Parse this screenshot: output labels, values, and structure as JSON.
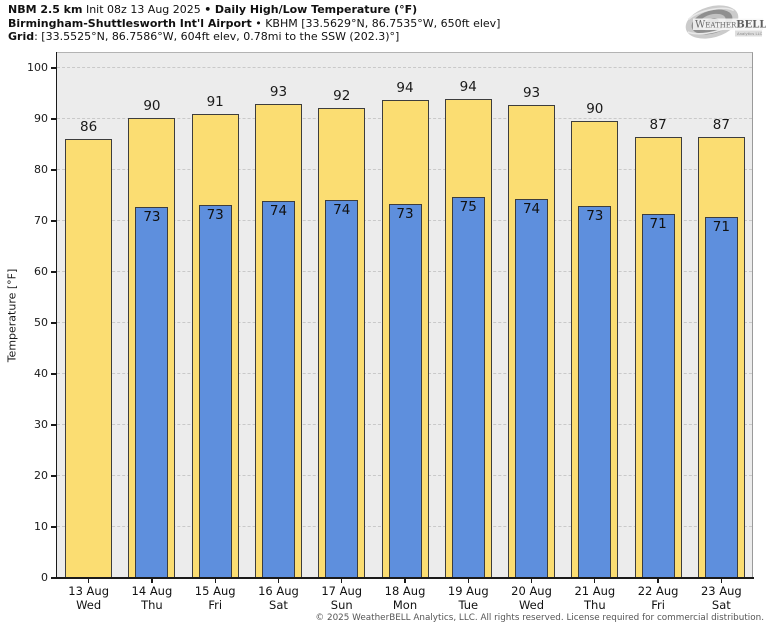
{
  "header": {
    "line1": {
      "model": "NBM 2.5 km",
      "init": "Init 08z 13 Aug 2025",
      "bullet": "•",
      "product": "Daily High/Low Temperature (°F)"
    },
    "line2": {
      "station": "Birmingham-Shuttlesworth Int'l Airport",
      "bullet": "•",
      "meta": "KBHM [33.5629°N, 86.7535°W, 650ft elev]"
    },
    "line3": {
      "label": "Grid",
      "meta": ": [33.5525°N, 86.7586°W, 604ft elev, 0.78mi to the SSW (202.3)°]"
    }
  },
  "logo": {
    "brand": "WeatherBELL",
    "brand_w": "W",
    "brand_eather": "EATHER",
    "brand_bell": "BELL",
    "sub": "Analytics LLC"
  },
  "chart_data": {
    "type": "bar",
    "title": "NBM 2.5 km Daily High/Low Temperature (°F) — Birmingham-Shuttlesworth Int'l Airport (KBHM)",
    "ylabel": "Temperature [°F]",
    "xlabel": "",
    "ylim": [
      0,
      103.14
    ],
    "yticks": [
      0,
      10,
      20,
      30,
      40,
      50,
      60,
      70,
      80,
      90,
      100
    ],
    "grid": true,
    "legend": false,
    "plot_bg": "#ececec",
    "categories": [
      "13 Aug",
      "14 Aug",
      "15 Aug",
      "16 Aug",
      "17 Aug",
      "18 Aug",
      "19 Aug",
      "20 Aug",
      "21 Aug",
      "22 Aug",
      "23 Aug"
    ],
    "weekdays": [
      "Wed",
      "Thu",
      "Fri",
      "Sat",
      "Sun",
      "Mon",
      "Tue",
      "Wed",
      "Thu",
      "Fri",
      "Sat"
    ],
    "series": [
      {
        "name": "Daily High",
        "color": "#fbdd72",
        "values": [
          86.0,
          90.2,
          91.0,
          93.0,
          92.2,
          93.7,
          94.0,
          92.8,
          89.7,
          86.5,
          86.5
        ],
        "labels": [
          86,
          90,
          91,
          93,
          92,
          94,
          94,
          93,
          90,
          87,
          87
        ]
      },
      {
        "name": "Daily Low",
        "color": "#5e8fdd",
        "values": [
          null,
          72.8,
          73.2,
          74.0,
          74.2,
          73.4,
          74.7,
          74.3,
          73.0,
          71.4,
          70.8
        ],
        "labels": [
          null,
          73,
          73,
          74,
          74,
          73,
          75,
          74,
          73,
          71,
          71
        ]
      }
    ]
  },
  "footer": {
    "copyright": "© 2025 WeatherBELL Analytics, LLC. All rights reserved. License required for commercial distribution."
  }
}
